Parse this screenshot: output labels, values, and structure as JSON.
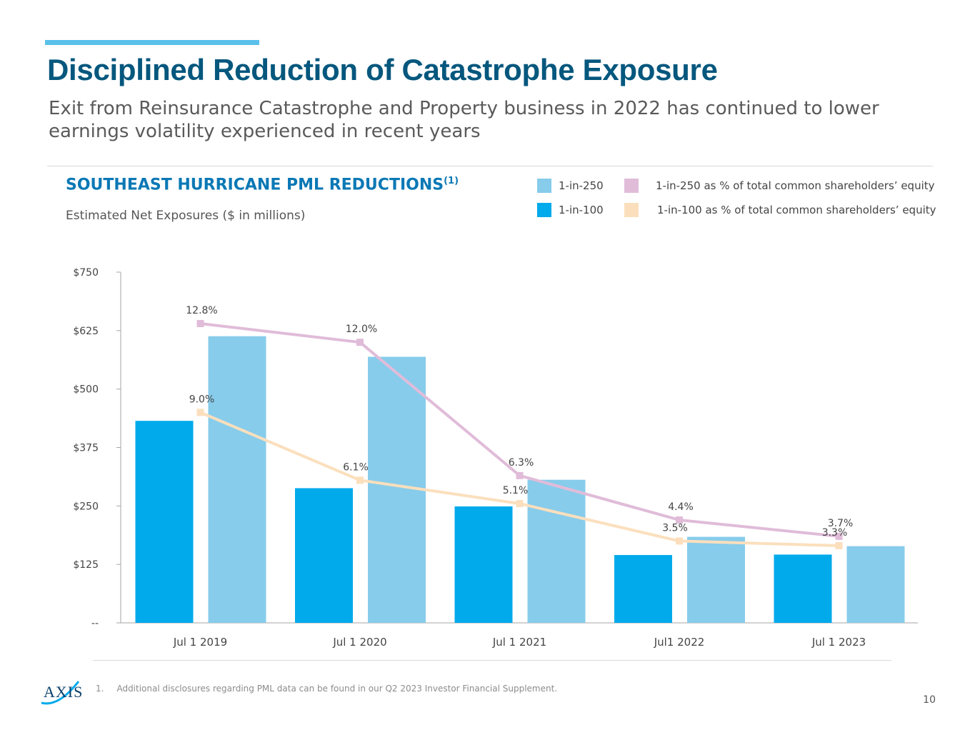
{
  "header": {
    "title": "Disciplined Reduction of Catastrophe Exposure",
    "subtitle": "Exit from Reinsurance Catastrophe and Property business in 2022 has continued to lower earnings volatility experienced in recent years"
  },
  "chart_heading": {
    "title": "SOUTHEAST HURRICANE PML REDUCTIONS",
    "note_marker": "(1)",
    "subtitle": "Estimated Net Exposures ($ in millions)"
  },
  "legend": {
    "placement": "top-right",
    "items": [
      {
        "label": "1-in-250",
        "color": "#87cceb"
      },
      {
        "label": "1-in-100",
        "color": "#00aaeb"
      },
      {
        "label": "1-in-250 as % of total common shareholders’ equity",
        "color": "#e0bcd9"
      },
      {
        "label": "1-in-100 as % of total common shareholders’ equity",
        "color": "#fbdfbd"
      }
    ]
  },
  "chart_data": {
    "type": "bar",
    "categories": [
      "Jul 1 2019",
      "Jul 1 2020",
      "Jul 1 2021",
      "Jul1 2022",
      "Jul 1 2023"
    ],
    "ylim": [
      0,
      750
    ],
    "y_ticks": [
      0,
      125,
      250,
      375,
      500,
      625,
      750
    ],
    "y_tick_labels": [
      "--",
      "$125",
      "$250",
      "$375",
      "$500",
      "$625",
      "$750"
    ],
    "grid": false,
    "series": [
      {
        "name": "1-in-100",
        "type": "bar",
        "color": "#00aaeb",
        "values": [
          432,
          288,
          249,
          145,
          146
        ]
      },
      {
        "name": "1-in-250",
        "type": "bar",
        "color": "#87cceb",
        "values": [
          613,
          569,
          306,
          184,
          164
        ]
      }
    ],
    "line_series": [
      {
        "name": "1-in-250 as % of total common shareholders’ equity",
        "type": "line",
        "color": "#e0bcd9",
        "values": [
          12.8,
          12.0,
          6.3,
          4.4,
          3.7
        ],
        "labels": [
          "12.8%",
          "12.0%",
          "6.3%",
          "4.4%",
          "3.7%"
        ]
      },
      {
        "name": "1-in-100 as % of total common shareholders’ equity",
        "type": "line",
        "color": "#fbdfbd",
        "values": [
          9.0,
          6.1,
          5.1,
          3.5,
          3.3
        ],
        "labels": [
          "9.0%",
          "6.1%",
          "5.1%",
          "3.5%",
          "3.3%"
        ]
      }
    ]
  },
  "footnote": {
    "number": "1.",
    "text": "Additional disclosures regarding PML data can be found in our Q2 2023 Investor Financial Supplement."
  },
  "logo_text": "AXIS",
  "page_number": "10"
}
